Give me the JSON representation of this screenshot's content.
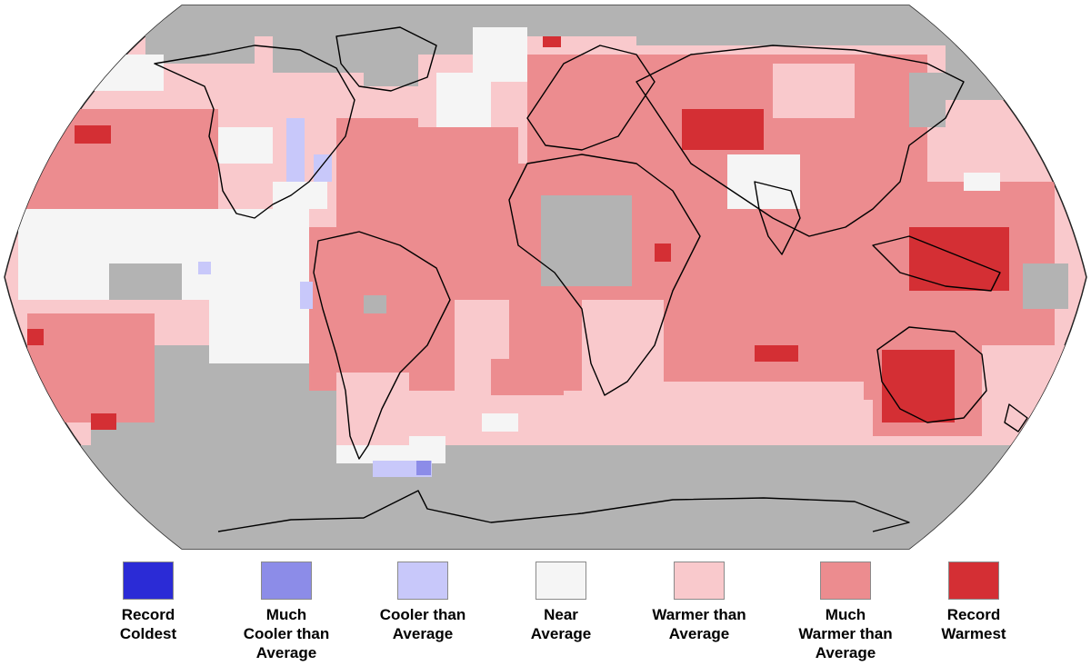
{
  "map": {
    "projection": "robinson",
    "ocean_no_data_color": "#b3b3b3",
    "coastline_color": "#000000"
  },
  "legend": {
    "items": [
      {
        "key": "record-coldest",
        "label": "Record\nColdest",
        "color": "#2b2bd6"
      },
      {
        "key": "much-cooler",
        "label": "Much\nCooler than\nAverage",
        "color": "#8c8ce8"
      },
      {
        "key": "cooler",
        "label": "Cooler than\nAverage",
        "color": "#c8c8fa"
      },
      {
        "key": "near-average",
        "label": "Near\nAverage",
        "color": "#f5f5f5"
      },
      {
        "key": "warmer",
        "label": "Warmer than\nAverage",
        "color": "#f9c9cc"
      },
      {
        "key": "much-warmer",
        "label": "Much\nWarmer than\nAverage",
        "color": "#ec8c8f"
      },
      {
        "key": "record-warmest",
        "label": "Record\nWarmest",
        "color": "#d42f34"
      }
    ]
  }
}
